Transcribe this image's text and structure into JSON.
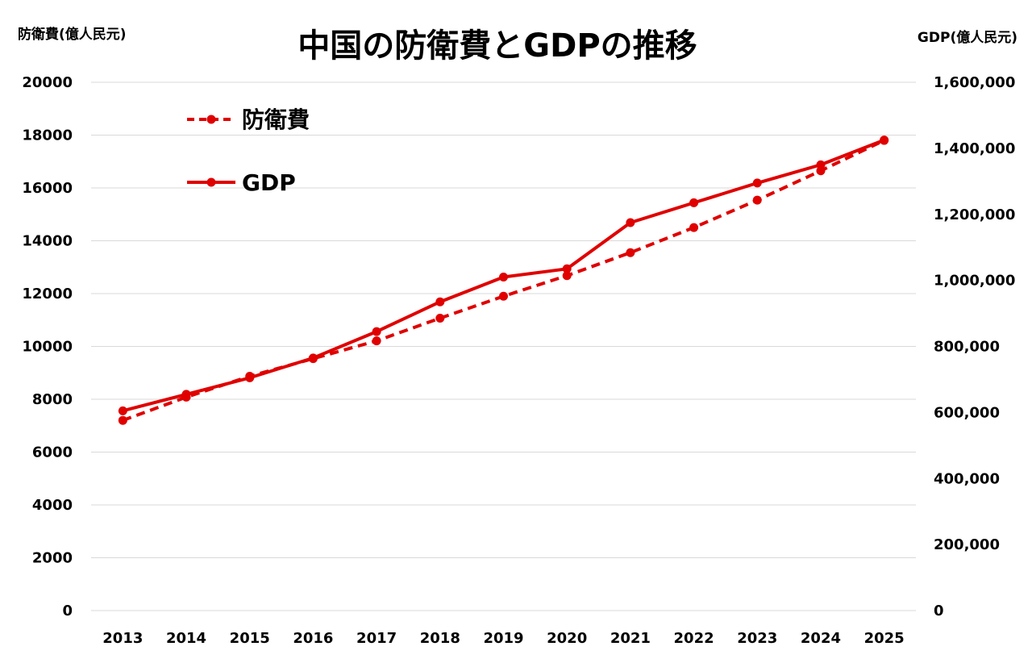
{
  "chart_data": {
    "type": "line",
    "title": "中国の防衛費とGDPの推移",
    "ylabel_left": "防衛費(億人民元)",
    "ylabel_right": "GDP(億人民元)",
    "categories": [
      "2013",
      "2014",
      "2015",
      "2016",
      "2017",
      "2018",
      "2019",
      "2020",
      "2021",
      "2022",
      "2023",
      "2024",
      "2025"
    ],
    "ylim_left": [
      0,
      20000
    ],
    "ylim_right": [
      0,
      1600000
    ],
    "yticks_left": [
      "0",
      "2000",
      "4000",
      "6000",
      "8000",
      "10000",
      "12000",
      "14000",
      "16000",
      "18000",
      "20000"
    ],
    "yticks_right": [
      "0",
      "200,000",
      "400,000",
      "600,000",
      "800,000",
      "1,000,000",
      "1,200,000",
      "1,400,000",
      "1,600,000"
    ],
    "grid": true,
    "legend_position": "top-left",
    "colors": {
      "series": "#e00000",
      "grid": "#d9d9d9"
    },
    "series": [
      {
        "name": "防衛費",
        "axis": "left",
        "style": "dashed",
        "values": [
          7200,
          8080,
          8870,
          9540,
          10210,
          11070,
          11900,
          12680,
          13550,
          14500,
          15540,
          16650,
          17800
        ]
      },
      {
        "name": "GDP",
        "axis": "right",
        "style": "solid",
        "values": [
          605000,
          655000,
          705000,
          765000,
          845000,
          935000,
          1010000,
          1035000,
          1175000,
          1235000,
          1295000,
          1350000,
          1425000
        ]
      }
    ]
  }
}
